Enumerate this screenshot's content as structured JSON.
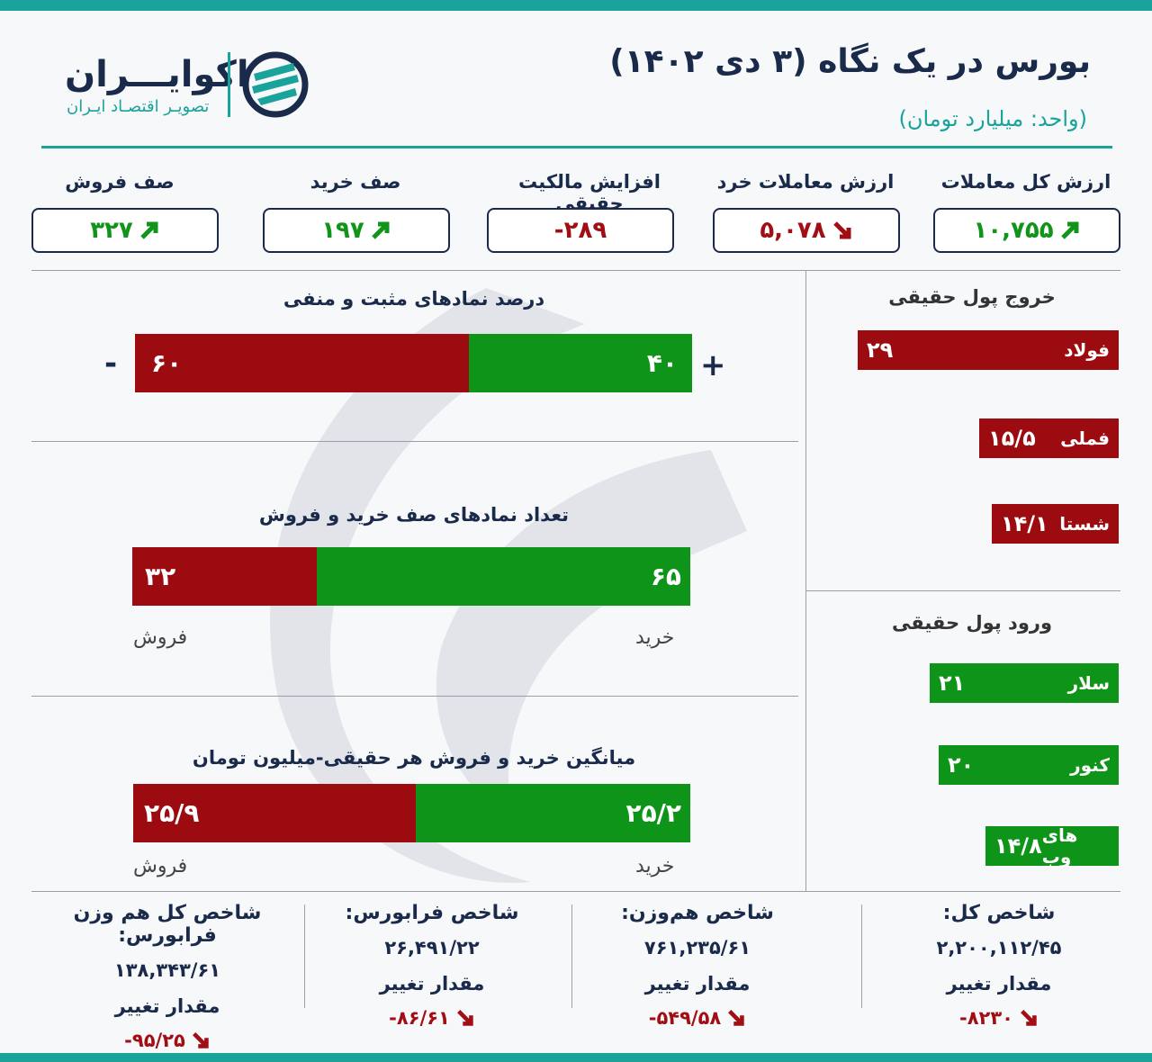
{
  "header": {
    "title": "بورس در یک نگاه (۳ دی ۱۴۰۲)",
    "unit": "(واحد: میلیارد تومان)",
    "logo_name": "اکوایـــران",
    "logo_tagline": "تصویـر اقتصـاد ایـران"
  },
  "kpis": [
    {
      "label": "ارزش کل معاملات",
      "value": "۱۰,۷۵۵",
      "trend": "up"
    },
    {
      "label": "ارزش معاملات خرد",
      "value": "۵,۰۷۸",
      "trend": "down"
    },
    {
      "label": "افزایش مالکیت حقیقی",
      "value": "-۲۸۹",
      "trend": "none"
    },
    {
      "label": "صف خرید",
      "value": "۱۹۷",
      "trend": "up"
    },
    {
      "label": "صف فروش",
      "value": "۳۲۷",
      "trend": "up"
    }
  ],
  "positive_negative": {
    "title": "درصد نمادهای مثبت و منفی",
    "positive": 40,
    "negative": 60,
    "positive_label": "۴۰",
    "negative_label": "۶۰",
    "plus_sign": "+",
    "minus_sign": "-"
  },
  "queues": {
    "title": "تعداد نمادهای صف خرید و فروش",
    "buy": 65,
    "sell": 32,
    "buy_label": "۶۵",
    "sell_label": "۳۲",
    "buy_caption": "خرید",
    "sell_caption": "فروش"
  },
  "avg_trade": {
    "title": "میانگین خرید و فروش هر حقیقی-میلیون تومان",
    "buy": 25.2,
    "sell": 25.9,
    "buy_label": "۲۵/۲",
    "sell_label": "۲۵/۹",
    "buy_caption": "خرید",
    "sell_caption": "فروش"
  },
  "outflow": {
    "title": "خروج پول حقیقی",
    "items": [
      {
        "name": "فولاد",
        "value": 29,
        "label": "۲۹"
      },
      {
        "name": "فملی",
        "value": 15.5,
        "label": "۱۵/۵"
      },
      {
        "name": "شستا",
        "value": 14.1,
        "label": "۱۴/۱"
      }
    ]
  },
  "inflow": {
    "title": "ورود پول حقیقی",
    "items": [
      {
        "name": "سلار",
        "value": 21,
        "label": "۲۱"
      },
      {
        "name": "کنور",
        "value": 20,
        "label": "۲۰"
      },
      {
        "name": "های وب",
        "value": 14.8,
        "label": "۱۴/۸"
      }
    ]
  },
  "indices": [
    {
      "title": "شاخص کل:",
      "value": "۲,۲۰۰,۱۱۲/۴۵",
      "change_label": "مقدار تغییر",
      "change": "-۸۲۳۰"
    },
    {
      "title": "شاخص هم‌وزن:",
      "value": "۷۶۱,۲۳۵/۶۱",
      "change_label": "مقدار تغییر",
      "change": "-۵۴۹/۵۸"
    },
    {
      "title": "شاخص فرابورس:",
      "value": "۲۶,۴۹۱/۲۲",
      "change_label": "مقدار تغییر",
      "change": "-۸۶/۶۱"
    },
    {
      "title": "شاخص کل هم وزن فرابورس:",
      "value": "۱۳۸,۳۴۳/۶۱",
      "change_label": "مقدار تغییر",
      "change": "-۹۵/۲۵"
    }
  ],
  "colors": {
    "teal": "#1aa39a",
    "navy": "#1a2a4a",
    "green": "#0f941a",
    "red": "#9b0b0f"
  }
}
